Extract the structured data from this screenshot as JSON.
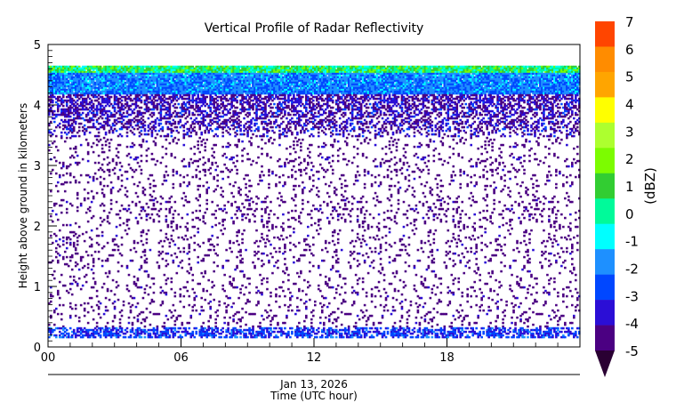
{
  "chart_data": {
    "type": "heatmap",
    "title": "Vertical Profile of Radar Reflectivity",
    "xlabel": "Time (UTC hour)",
    "x_date_label": "Jan 13, 2026",
    "ylabel": "Height above ground in kilometers",
    "xlim": [
      0,
      24
    ],
    "ylim": [
      0,
      5
    ],
    "x_ticks": [
      "00",
      "06",
      "12",
      "18"
    ],
    "x_tick_values": [
      0,
      6,
      12,
      18
    ],
    "y_ticks": [
      "0",
      "1",
      "2",
      "3",
      "4",
      "5"
    ],
    "y_tick_values": [
      0,
      1,
      2,
      3,
      4,
      5
    ],
    "data_top_km": 4.65,
    "colorbar": {
      "label": "(dBZ)",
      "ticks": [
        "7",
        "6",
        "5",
        "4",
        "3",
        "2",
        "1",
        "0",
        "-1",
        "-2",
        "-3",
        "-4",
        "-5"
      ],
      "tick_values": [
        7,
        6,
        5,
        4,
        3,
        2,
        1,
        0,
        -1,
        -2,
        -3,
        -4,
        -5
      ],
      "min": -5,
      "max": 7,
      "extend": "min",
      "colors": [
        "#ff4500",
        "#ff8c00",
        "#ffa500",
        "#ffff00",
        "#adff2f",
        "#7cfc00",
        "#32cd32",
        "#00fa9a",
        "#00ffff",
        "#1e90ff",
        "#0047ff",
        "#2b0ed6",
        "#4b0082"
      ],
      "under_color": "#2a0033"
    },
    "profile_summary": [
      {
        "height_range_km": [
          4.55,
          4.65
        ],
        "typical_dBZ": [
          -1,
          2
        ]
      },
      {
        "height_range_km": [
          4.2,
          4.55
        ],
        "typical_dBZ": [
          -3,
          -1
        ]
      },
      {
        "height_range_km": [
          3.5,
          4.2
        ],
        "typical_dBZ": [
          -5,
          -3
        ]
      },
      {
        "height_range_km": [
          0.35,
          3.5
        ],
        "typical_dBZ": [
          -5,
          -4
        ]
      },
      {
        "height_range_km": [
          0.15,
          0.35
        ],
        "typical_dBZ": [
          -4,
          -2
        ]
      }
    ]
  }
}
